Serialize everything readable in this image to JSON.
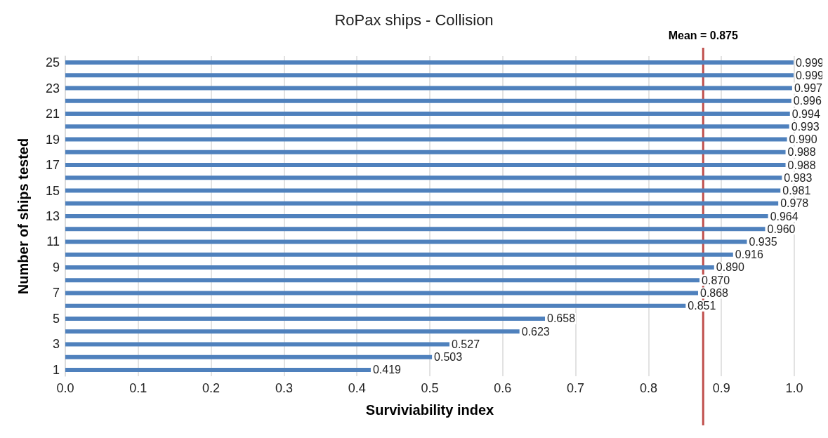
{
  "chart_data": {
    "type": "bar",
    "orientation": "horizontal",
    "title": "RoPax ships - Collision",
    "xlabel": "Surviviability index",
    "ylabel": "Number of ships tested",
    "categories": [
      "25",
      null,
      "23",
      null,
      "21",
      null,
      "19",
      null,
      "17",
      null,
      "15",
      null,
      "13",
      null,
      "11",
      null,
      "9",
      null,
      "7",
      null,
      "5",
      null,
      "3",
      null,
      "1"
    ],
    "values": [
      0.999,
      0.999,
      0.997,
      0.996,
      0.994,
      0.993,
      0.99,
      0.988,
      0.988,
      0.983,
      0.981,
      0.978,
      0.964,
      0.96,
      0.935,
      0.916,
      0.89,
      0.87,
      0.868,
      0.851,
      0.658,
      0.623,
      0.527,
      0.503,
      0.419
    ],
    "value_labels": [
      "0.999",
      "0.999",
      "0.997",
      "0.996",
      "0.994",
      "0.993",
      "0.990",
      "0.988",
      "0.988",
      "0.983",
      "0.981",
      "0.978",
      "0.964",
      "0.960",
      "0.935",
      "0.916",
      "0.890",
      "0.870",
      "0.868",
      "0.851",
      "0.658",
      "0.623",
      "0.527",
      "0.503",
      "0.419"
    ],
    "color": "#4f81bd",
    "xlim": [
      0,
      1
    ],
    "xticks": [
      {
        "value": 0,
        "label": "0.0"
      },
      {
        "value": 0.1,
        "label": "0.1"
      },
      {
        "value": 0.2,
        "label": "0.2"
      },
      {
        "value": 0.3,
        "label": "0.3"
      },
      {
        "value": 0.4,
        "label": "0.4"
      },
      {
        "value": 0.5,
        "label": "0.5"
      },
      {
        "value": 0.6,
        "label": "0.6"
      },
      {
        "value": 0.7,
        "label": "0.7"
      },
      {
        "value": 0.8,
        "label": "0.8"
      },
      {
        "value": 0.9,
        "label": "0.9"
      },
      {
        "value": 1,
        "label": "1.0"
      }
    ],
    "grid": "x",
    "ref_lines": [
      {
        "axis": "x",
        "value": 0.875,
        "label": "Mean = 0.875",
        "color": "#c0504d"
      }
    ]
  }
}
